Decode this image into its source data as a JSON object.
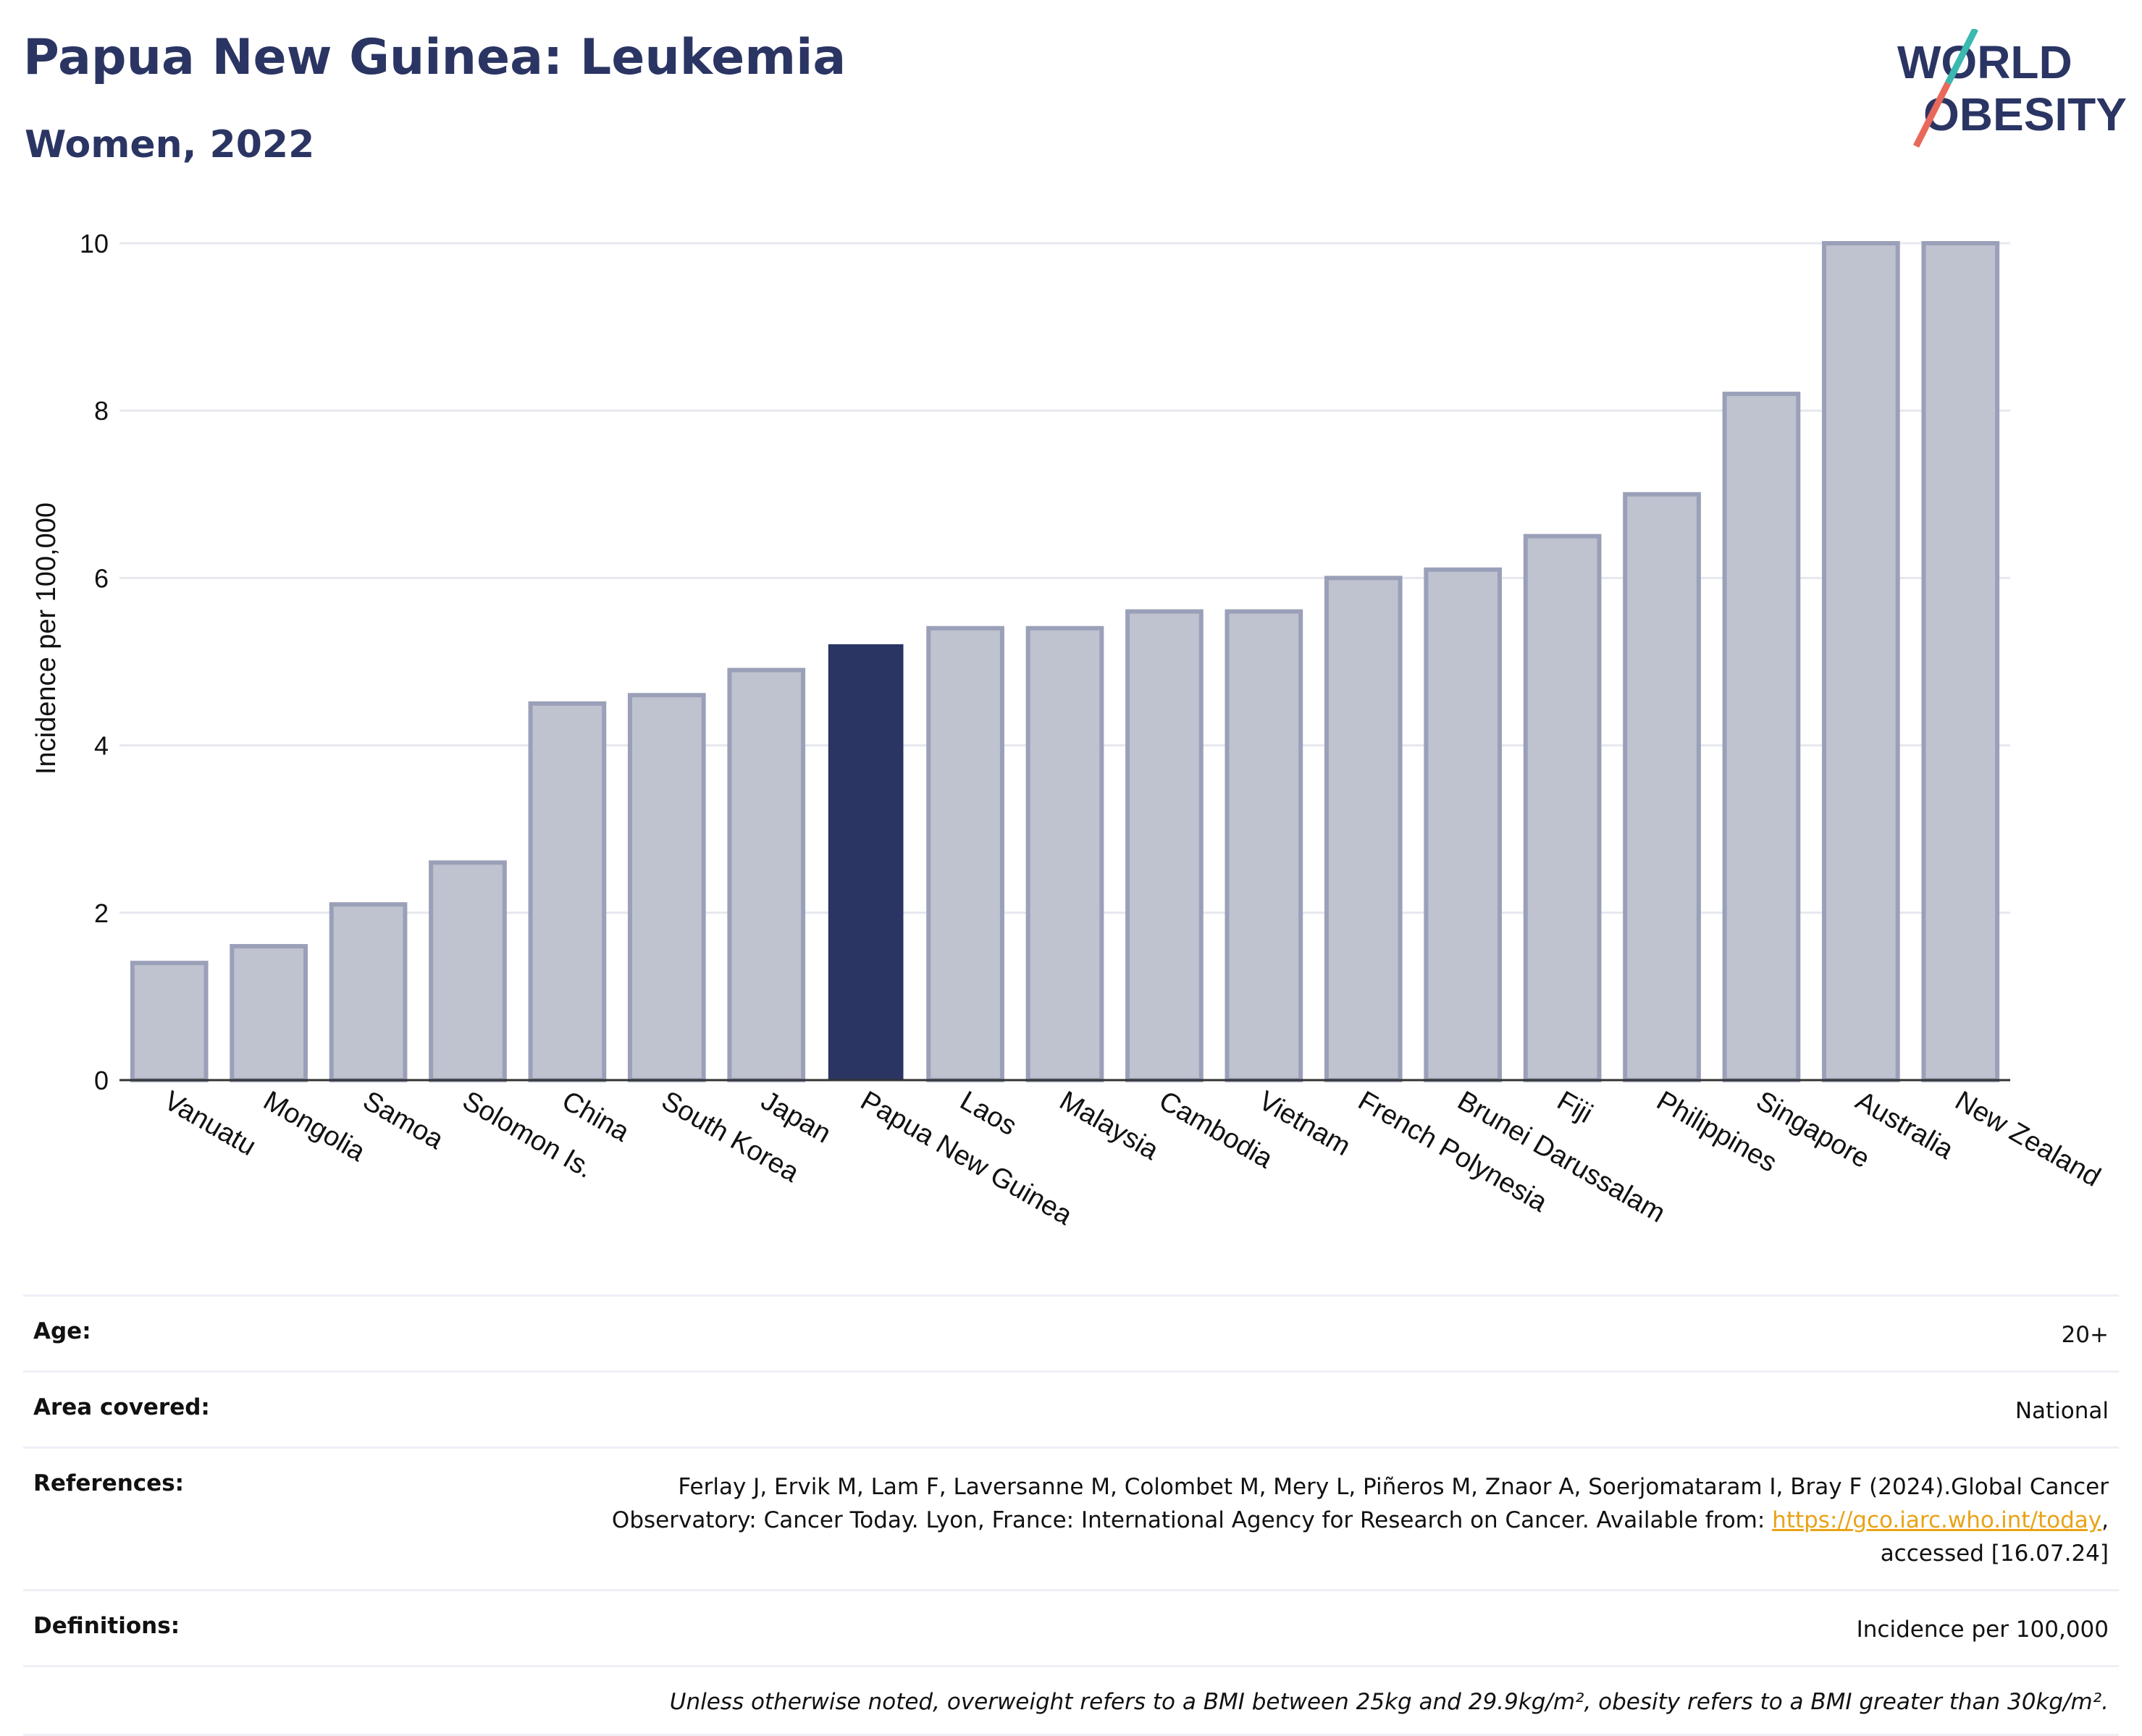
{
  "header": {
    "title": "Papua New Guinea: Leukemia",
    "subtitle": "Women, 2022"
  },
  "logo": {
    "line1": "WORLD",
    "line2": "OBESITY",
    "accent_teal": "#3bb8b0",
    "accent_red": "#e8685a",
    "text_color": "#2b3563"
  },
  "chart_data": {
    "type": "bar",
    "ylabel": "Incidence per 100,000",
    "ylim": [
      0,
      10
    ],
    "yticks": [
      0,
      2,
      4,
      6,
      8,
      10
    ],
    "grid": true,
    "highlight": "Papua New Guinea",
    "highlight_color": "#2b3563",
    "bar_color": "#bfc2cf",
    "bar_border_color": "#9aa0b8",
    "categories": [
      "Vanuatu",
      "Mongolia",
      "Samoa",
      "Solomon Is.",
      "China",
      "South Korea",
      "Japan",
      "Papua New Guinea",
      "Laos",
      "Malaysia",
      "Cambodia",
      "Vietnam",
      "French Polynesia",
      "Brunei Darussalam",
      "Fiji",
      "Philippines",
      "Singapore",
      "Australia",
      "New Zealand"
    ],
    "values": [
      1.4,
      1.6,
      2.1,
      2.6,
      4.5,
      4.6,
      4.9,
      5.2,
      5.4,
      5.4,
      5.6,
      5.6,
      6.0,
      6.1,
      6.5,
      7.0,
      8.2,
      10.0,
      10.0
    ]
  },
  "info": {
    "age_label": "Age:",
    "age_value": "20+",
    "area_label": "Area covered:",
    "area_value": "National",
    "references_label": "References:",
    "references_text1": "Ferlay J, Ervik M, Lam F, Laversanne M, Colombet M, Mery L, Piñeros M, Znaor A, Soerjomataram I, Bray F (2024).Global Cancer",
    "references_text2": "Observatory: Cancer Today. Lyon, France: International Agency for Research on Cancer. Available from: ",
    "references_link": "https://gco.iarc.who.int/today",
    "references_text3": ",",
    "references_text4": "accessed [16.07.24]",
    "definitions_label": "Definitions:",
    "definitions_value": "Incidence per 100,000",
    "note": "Unless otherwise noted, overweight refers to a BMI between 25kg and 29.9kg/m², obesity refers to a BMI greater than 30kg/m²."
  }
}
